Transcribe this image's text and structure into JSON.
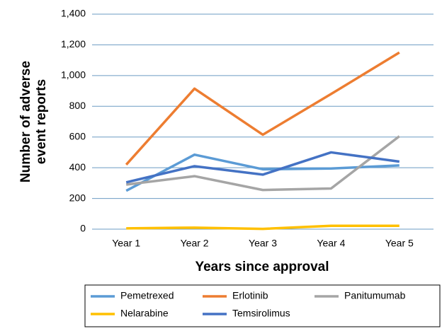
{
  "chart_data": {
    "type": "line",
    "xlabel": "Years since approval",
    "ylabel": "Number of adverse event reports",
    "categories": [
      "Year 1",
      "Year 2",
      "Year 3",
      "Year 4",
      "Year 5"
    ],
    "series": [
      {
        "name": "Pemetrexed",
        "color": "#5b9bd5",
        "values": [
          250,
          485,
          390,
          395,
          415
        ]
      },
      {
        "name": "Erlotinib",
        "color": "#ed7d31",
        "values": [
          420,
          915,
          615,
          880,
          1150
        ]
      },
      {
        "name": "Panitumumab",
        "color": "#a5a5a5",
        "values": [
          290,
          345,
          255,
          265,
          605
        ]
      },
      {
        "name": "Nelarabine",
        "color": "#ffc000",
        "values": [
          5,
          10,
          2,
          22,
          22
        ]
      },
      {
        "name": "Temsirolimus",
        "color": "#4472c4",
        "values": [
          305,
          410,
          355,
          500,
          440
        ]
      }
    ],
    "ylim": [
      0,
      1400
    ],
    "yticks": [
      0,
      200,
      400,
      600,
      800,
      {
        "value": 1000,
        "label": "1,000"
      },
      {
        "value": 1200,
        "label": "1,200"
      },
      {
        "value": 1400,
        "label": "1,400"
      }
    ],
    "grid": true,
    "legend": "bottom"
  }
}
